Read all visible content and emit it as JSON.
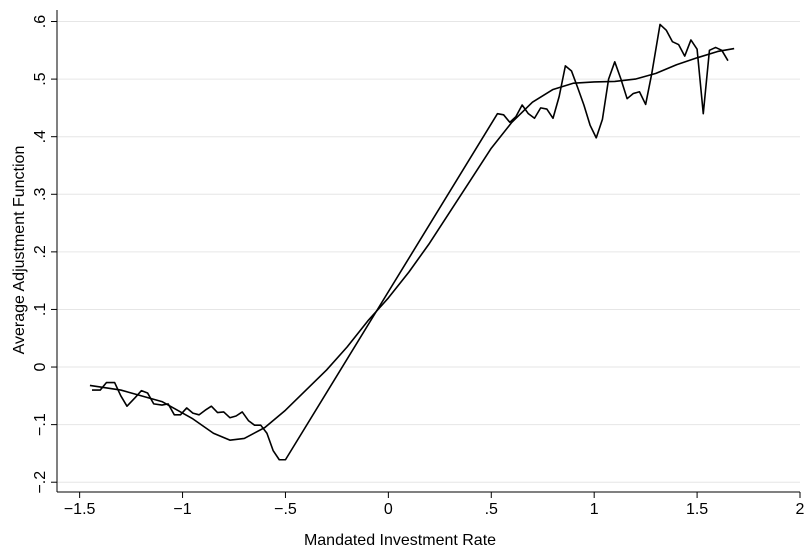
{
  "chart_data": {
    "type": "line",
    "x_label": "Mandated Investment Rate",
    "y_label": "Average Adjustment Function",
    "xlim": [
      -1.61,
      2.0
    ],
    "ylim": [
      -0.217,
      0.62
    ],
    "xticks": [
      {
        "value": -1.5,
        "label": "−1.5"
      },
      {
        "value": -1,
        "label": "−1"
      },
      {
        "value": -0.5,
        "label": "−.5"
      },
      0,
      {
        "value": 0.5,
        "label": ".5"
      },
      1,
      1.5,
      2
    ],
    "yticks": [
      {
        "value": -0.2,
        "label": "−.2"
      },
      {
        "value": -0.1,
        "label": "−.1"
      },
      0,
      {
        "value": 0.1,
        "label": ".1"
      },
      {
        "value": 0.2,
        "label": ".2"
      },
      {
        "value": 0.3,
        "label": ".3"
      },
      {
        "value": 0.4,
        "label": ".4"
      },
      {
        "value": 0.5,
        "label": ".5"
      },
      {
        "value": 0.6,
        "label": ".6"
      }
    ],
    "grid": true,
    "series": [
      {
        "color": "#000000",
        "x": [
          -1.44,
          -1.4,
          -1.37,
          -1.33,
          -1.3,
          -1.27,
          -1.23,
          -1.2,
          -1.17,
          -1.14,
          -1.1,
          -1.07,
          -1.04,
          -1.01,
          -0.98,
          -0.95,
          -0.92,
          -0.89,
          -0.86,
          -0.83,
          -0.8,
          -0.77,
          -0.74,
          -0.71,
          -0.68,
          -0.65,
          -0.62,
          -0.59,
          -0.56,
          -0.53,
          -0.5,
          0.53,
          0.56,
          0.59,
          0.62,
          0.65,
          0.68,
          0.71,
          0.74,
          0.77,
          0.8,
          0.83,
          0.86,
          0.89,
          0.92,
          0.95,
          0.98,
          1.01,
          1.04,
          1.07,
          1.1,
          1.13,
          1.16,
          1.19,
          1.22,
          1.25,
          1.28,
          1.32,
          1.35,
          1.38,
          1.41,
          1.44,
          1.47,
          1.5,
          1.53,
          1.56,
          1.59,
          1.62,
          1.65
        ],
        "values": [
          -0.04,
          -0.04,
          -0.027,
          -0.027,
          -0.05,
          -0.068,
          -0.053,
          -0.041,
          -0.045,
          -0.064,
          -0.066,
          -0.064,
          -0.083,
          -0.083,
          -0.071,
          -0.08,
          -0.083,
          -0.075,
          -0.068,
          -0.079,
          -0.078,
          -0.088,
          -0.085,
          -0.078,
          -0.093,
          -0.101,
          -0.101,
          -0.115,
          -0.145,
          -0.161,
          -0.161,
          0.44,
          0.438,
          0.425,
          0.435,
          0.455,
          0.44,
          0.432,
          0.45,
          0.448,
          0.432,
          0.47,
          0.523,
          0.514,
          0.485,
          0.455,
          0.42,
          0.398,
          0.43,
          0.5,
          0.53,
          0.5,
          0.466,
          0.475,
          0.478,
          0.456,
          0.51,
          0.595,
          0.585,
          0.565,
          0.56,
          0.54,
          0.568,
          0.552,
          0.44,
          0.55,
          0.555,
          0.55,
          0.532
        ]
      },
      {
        "color": "#000000",
        "x": [
          -1.45,
          -1.3,
          -1.1,
          -0.95,
          -0.85,
          -0.77,
          -0.7,
          -0.6,
          -0.5,
          -0.4,
          -0.3,
          -0.2,
          -0.1,
          0,
          0.1,
          0.2,
          0.3,
          0.4,
          0.5,
          0.6,
          0.7,
          0.8,
          0.9,
          1.0,
          1.1,
          1.2,
          1.3,
          1.4,
          1.5,
          1.6,
          1.68
        ],
        "values": [
          -0.032,
          -0.04,
          -0.06,
          -0.09,
          -0.115,
          -0.127,
          -0.124,
          -0.105,
          -0.075,
          -0.04,
          -0.005,
          0.035,
          0.08,
          0.12,
          0.165,
          0.215,
          0.27,
          0.325,
          0.38,
          0.425,
          0.46,
          0.482,
          0.493,
          0.495,
          0.496,
          0.5,
          0.51,
          0.525,
          0.537,
          0.548,
          0.553
        ]
      }
    ]
  }
}
